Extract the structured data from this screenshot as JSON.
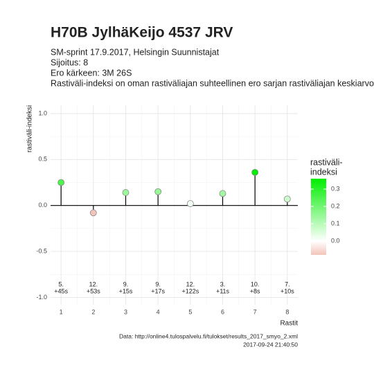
{
  "chart_data": {
    "type": "lollipop",
    "title": "H70B JylhäKeijo 4537 JRV",
    "subtitle": [
      "SM-sprint 17.9.2017, Helsingin Suunnistajat",
      "Sijoitus: 8",
      "Ero kärkeen: 3M 26S",
      "Rastiväli-indeksi on oman rastiväliajan suhteellinen ero sarjan rastiväliajan keskiarvoon"
    ],
    "x_label": "Rastit",
    "y_label": "rastiväli-indeksi",
    "x": [
      1,
      2,
      3,
      4,
      5,
      6,
      7,
      8
    ],
    "values": [
      0.25,
      -0.08,
      0.14,
      0.15,
      0.02,
      0.13,
      0.36,
      0.07
    ],
    "point_labels": [
      [
        "5.",
        "+45s"
      ],
      [
        "12.",
        "+53s"
      ],
      [
        "9.",
        "+15s"
      ],
      [
        "9.",
        "+17s"
      ],
      [
        "12.",
        "+122s"
      ],
      [
        "3.",
        "+11s"
      ],
      [
        "10.",
        "+8s"
      ],
      [
        "7.",
        "+10s"
      ]
    ],
    "xlim": [
      0.675,
      8.325
    ],
    "xticks": [
      1,
      2,
      3,
      4,
      5,
      6,
      7,
      8
    ],
    "ylim": [
      -1.08,
      1.09
    ],
    "yticks": [
      -1.0,
      -0.5,
      0.0,
      0.5,
      1.0
    ],
    "ytick_labels": [
      "-1.0",
      "-0.5",
      "0.0",
      "0.5",
      "1.0"
    ],
    "grid": true,
    "colors": {
      "low": "#f3c4ba",
      "mid": "#ffffff",
      "high": "#00ee00"
    },
    "legend_title": [
      "rastiväli-",
      "indeksi"
    ],
    "legend_ticks": [
      {
        "value": 0,
        "label": "0.0"
      },
      0.1,
      0.2,
      0.3
    ],
    "caption": [
      "Data: http://online4.tulospalvelu.fi/tulokset/results_2017_smyo_2.xml",
      "2017-09-24 21:40:50"
    ]
  }
}
